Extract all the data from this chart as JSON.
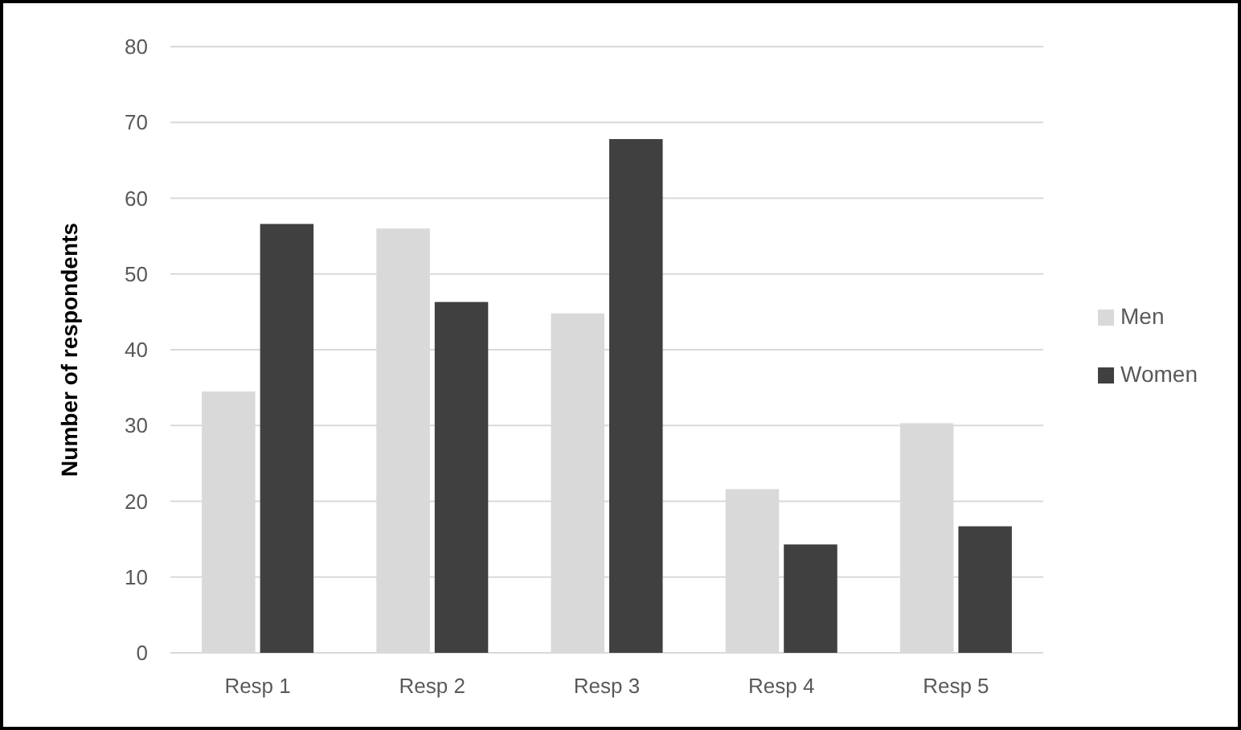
{
  "chart_data": {
    "type": "bar",
    "ylabel": "Number of respondents",
    "categories": [
      "Resp 1",
      "Resp 2",
      "Resp 3",
      "Resp 4",
      "Resp 5"
    ],
    "series": [
      {
        "name": "Men",
        "color": "#d9d9d9",
        "values": [
          34.5,
          56,
          44.8,
          21.6,
          30.3
        ]
      },
      {
        "name": "Women",
        "color": "#404040",
        "values": [
          56.6,
          46.3,
          67.8,
          14.3,
          16.7
        ]
      }
    ],
    "ylim": [
      0,
      80
    ],
    "yticks": [
      0,
      10,
      20,
      30,
      40,
      50,
      60,
      70,
      80
    ],
    "grid": "y",
    "legend": "right"
  }
}
